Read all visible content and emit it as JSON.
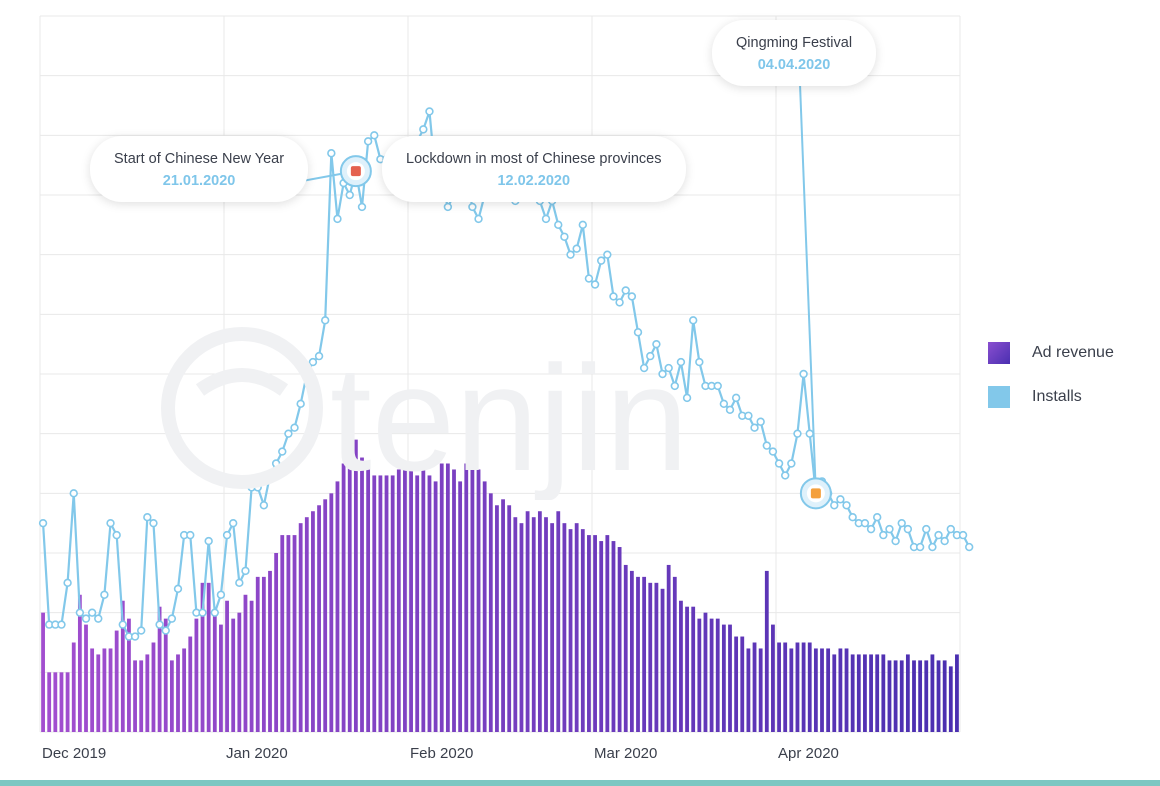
{
  "chart_data": {
    "type": "bar+line",
    "x_tick_labels": [
      "Dec 2019",
      "Jan 2020",
      "Feb 2020",
      "Mar 2020",
      "Apr 2020"
    ],
    "watermark": "tenjin",
    "colors": {
      "ad_revenue": "#6c3ec8",
      "installs": "#82c8ea",
      "grid": "#e6e6e6"
    },
    "series": [
      {
        "name": "Ad revenue",
        "values": [
          20,
          10,
          10,
          10,
          10,
          15,
          23,
          18,
          14,
          13,
          14,
          14,
          17,
          22,
          19,
          12,
          12,
          13,
          15,
          21,
          19,
          12,
          13,
          14,
          16,
          19,
          25,
          25,
          20,
          18,
          22,
          19,
          20,
          23,
          22,
          26,
          26,
          27,
          30,
          33,
          33,
          33,
          35,
          36,
          37,
          38,
          39,
          40,
          42,
          45,
          50,
          49,
          46,
          44,
          43,
          43,
          43,
          43,
          44,
          45,
          44,
          43,
          45,
          43,
          42,
          45,
          45,
          44,
          42,
          45,
          45,
          44,
          42,
          40,
          38,
          39,
          38,
          36,
          35,
          37,
          36,
          37,
          36,
          35,
          37,
          35,
          34,
          35,
          34,
          33,
          33,
          32,
          33,
          32,
          31,
          28,
          27,
          26,
          26,
          25,
          25,
          24,
          28,
          26,
          22,
          21,
          21,
          19,
          20,
          19,
          19,
          18,
          18,
          16,
          16,
          14,
          15,
          14,
          27,
          18,
          15,
          15,
          14,
          15,
          15,
          15,
          14,
          14,
          14,
          13,
          14,
          14,
          13,
          13,
          13,
          13,
          13,
          13,
          12,
          12,
          12,
          13,
          12,
          12,
          12,
          13,
          12,
          12,
          11,
          13
        ]
      },
      {
        "name": "Installs",
        "values": [
          35,
          18,
          18,
          18,
          25,
          40,
          20,
          19,
          20,
          19,
          23,
          35,
          33,
          18,
          16,
          16,
          17,
          36,
          35,
          18,
          17,
          19,
          24,
          33,
          33,
          20,
          20,
          32,
          20,
          23,
          33,
          35,
          25,
          27,
          41,
          41,
          38,
          43,
          45,
          47,
          50,
          51,
          55,
          60,
          62,
          63,
          69,
          97,
          86,
          92,
          90,
          94,
          88,
          99,
          100,
          96,
          96,
          95,
          97,
          94,
          98,
          99,
          101,
          104,
          93,
          92,
          88,
          90,
          95,
          93,
          88,
          86,
          90,
          94,
          95,
          91,
          91,
          89,
          93,
          97,
          95,
          89,
          86,
          89,
          85,
          83,
          80,
          81,
          85,
          76,
          75,
          79,
          80,
          73,
          72,
          74,
          73,
          67,
          61,
          63,
          65,
          60,
          61,
          58,
          62,
          56,
          69,
          62,
          58,
          58,
          58,
          55,
          54,
          56,
          53,
          53,
          51,
          52,
          48,
          47,
          45,
          43,
          45,
          50,
          60,
          50,
          40,
          42,
          40,
          38,
          39,
          38,
          36,
          35,
          35,
          34,
          36,
          33,
          34,
          32,
          35,
          34,
          31,
          31,
          34,
          31,
          33,
          32,
          34,
          33,
          33,
          31
        ]
      }
    ],
    "annotations": [
      {
        "title": "Start of Chinese New Year",
        "date": "21.01.2020",
        "icon": "lion-dance-icon"
      },
      {
        "title": "Lockdown in most of Chinese provinces",
        "date": "12.02.2020",
        "icon": "house-icon"
      },
      {
        "title": "Qingming Festival",
        "date": "04.04.2020",
        "icon": "incense-icon"
      }
    ]
  }
}
